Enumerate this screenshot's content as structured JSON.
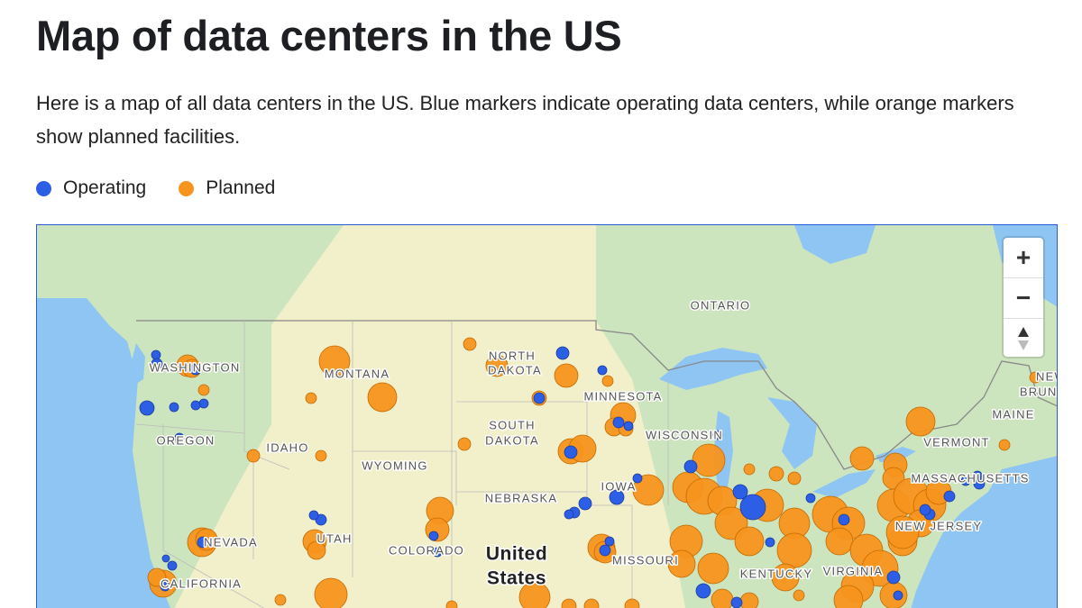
{
  "header": {
    "title": "Map of data centers in the US",
    "description": "Here is a map of all data centers in the US. Blue markers indicate operating data centers, while orange markers show planned facilities."
  },
  "legend": {
    "items": [
      "Operating",
      "Planned"
    ]
  },
  "map": {
    "controls": {
      "zoom_in": "+",
      "zoom_out": "−"
    },
    "labels": [
      "ONTARIO",
      "NORTH",
      "DAKOTA",
      "MINNESOTA",
      "SOUTH",
      "DAKOTA",
      "WISCONSIN",
      "WASHINGTON",
      "MONTANA",
      "OREGON",
      "IDAHO",
      "WYOMING",
      "NEBRASKA",
      "VERMONT",
      "MAINE",
      "MASSACHUSETTS",
      "NEVADA",
      "UTAH",
      "COLORADO",
      "IOWA",
      "MISSOURI",
      "KENTUCKY",
      "VIRGINIA",
      "NEW JERSEY",
      "NEW",
      "BRUNSWICK",
      "CALIFORNIA"
    ],
    "country_label": [
      "United",
      "States"
    ]
  }
}
